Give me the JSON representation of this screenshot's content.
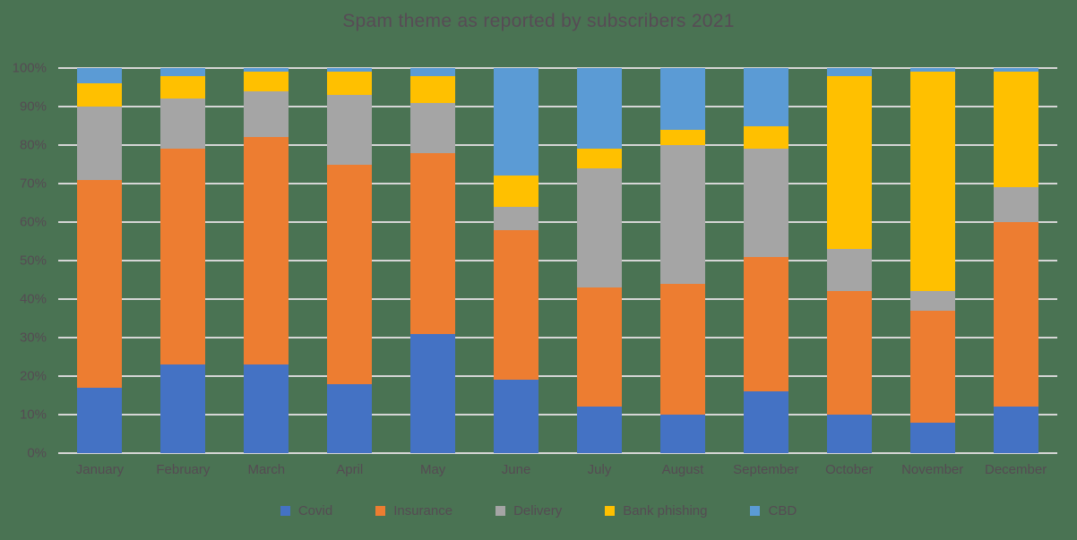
{
  "colors": {
    "background": "#4A7353",
    "text": "#554B53",
    "gridline": "#D6D6D6"
  },
  "chart_data": {
    "type": "bar",
    "stacked": true,
    "stacked_percent": true,
    "title": "Spam theme as reported by subscribers 2021",
    "xlabel": "",
    "ylabel": "",
    "ylim": [
      0,
      100
    ],
    "grid": true,
    "legend_position": "bottom",
    "y_ticks": [
      "0%",
      "10%",
      "20%",
      "30%",
      "40%",
      "50%",
      "60%",
      "70%",
      "80%",
      "90%",
      "100%"
    ],
    "categories": [
      "January",
      "February",
      "March",
      "April",
      "May",
      "June",
      "July",
      "August",
      "September",
      "October",
      "November",
      "December"
    ],
    "series": [
      {
        "name": "Covid",
        "color": "#4472C4",
        "values": [
          17,
          23,
          23,
          18,
          31,
          19,
          12,
          10,
          16,
          10,
          8,
          12
        ]
      },
      {
        "name": "Insurance",
        "color": "#ED7D31",
        "values": [
          54,
          56,
          59,
          57,
          47,
          39,
          31,
          34,
          35,
          32,
          29,
          48
        ]
      },
      {
        "name": "Delivery",
        "color": "#A5A5A5",
        "values": [
          19,
          13,
          12,
          18,
          13,
          6,
          31,
          36,
          28,
          11,
          5,
          9
        ]
      },
      {
        "name": "Bank phishing",
        "color": "#FFC000",
        "values": [
          6,
          6,
          5,
          6,
          7,
          8,
          5,
          4,
          6,
          45,
          57,
          30
        ]
      },
      {
        "name": "CBD",
        "color": "#5B9BD5",
        "values": [
          4,
          2,
          1,
          1,
          2,
          28,
          21,
          16,
          15,
          2,
          1,
          1
        ]
      }
    ]
  }
}
